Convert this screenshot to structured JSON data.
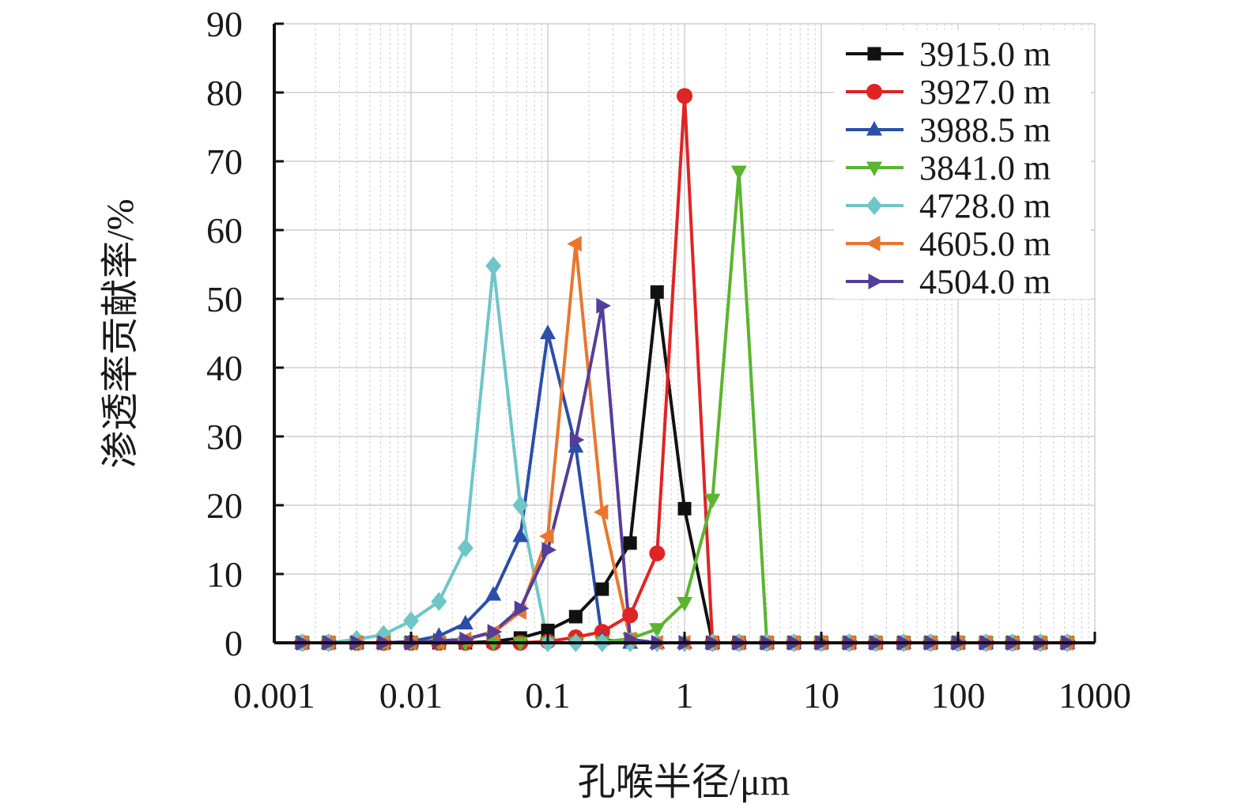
{
  "chart_data": {
    "type": "line",
    "xlabel": "孔喉半径/μm",
    "ylabel": "渗透率贡献率/%",
    "xscale": "log",
    "xlim": [
      0.001,
      1000
    ],
    "ylim": [
      0,
      90
    ],
    "xticks": [
      0.001,
      0.01,
      0.1,
      1,
      10,
      100,
      1000
    ],
    "xtick_labels": [
      "0.001",
      "0.01",
      "0.1",
      "1",
      "10",
      "100",
      "1000"
    ],
    "yticks": [
      0,
      10,
      20,
      30,
      40,
      50,
      60,
      70,
      80,
      90
    ],
    "ytick_labels": [
      "0",
      "10",
      "20",
      "30",
      "40",
      "50",
      "60",
      "70",
      "80",
      "90"
    ],
    "grid": true,
    "legend_position": "top-right",
    "x": [
      0.0016,
      0.0025,
      0.004,
      0.0063,
      0.01,
      0.016,
      0.025,
      0.04,
      0.063,
      0.1,
      0.16,
      0.25,
      0.4,
      0.63,
      1,
      1.6,
      2.5,
      4,
      6.3,
      10,
      16,
      25,
      40,
      63,
      100,
      160,
      250,
      400,
      630
    ],
    "series": [
      {
        "name": "3915.0 m",
        "color": "#111111",
        "marker": "square",
        "values": [
          0,
          0,
          0,
          0,
          0,
          0,
          0,
          0.2,
          0.7,
          1.8,
          3.8,
          7.8,
          14.5,
          51,
          19.5,
          0,
          0,
          0,
          0,
          0,
          0,
          0,
          0,
          0,
          0,
          0,
          0,
          0,
          0
        ]
      },
      {
        "name": "3927.0 m",
        "color": "#e02424",
        "marker": "circle",
        "values": [
          0,
          0,
          0,
          0,
          0,
          0,
          0,
          0,
          0,
          0.2,
          0.8,
          1.6,
          4,
          13,
          79.5,
          0,
          0,
          0,
          0,
          0,
          0,
          0,
          0,
          0,
          0,
          0,
          0,
          0,
          0
        ]
      },
      {
        "name": "3988.5 m",
        "color": "#2b4ea8",
        "marker": "triangle-up",
        "values": [
          0,
          0,
          0,
          0,
          0.2,
          1,
          2.8,
          7,
          15.5,
          45,
          28.5,
          0.5,
          0,
          0,
          0,
          0,
          0,
          0,
          0,
          0,
          0,
          0,
          0,
          0,
          0,
          0,
          0,
          0,
          0
        ]
      },
      {
        "name": "3841.0 m",
        "color": "#5ab52f",
        "marker": "triangle-down",
        "values": [
          0,
          0,
          0,
          0,
          0,
          0,
          0,
          0,
          0,
          0,
          0,
          0.1,
          0.6,
          2,
          5.8,
          20.8,
          68.5,
          0,
          0,
          0,
          0,
          0,
          0,
          0,
          0,
          0,
          0,
          0,
          0
        ]
      },
      {
        "name": "4728.0 m",
        "color": "#6fc6c6",
        "marker": "diamond",
        "values": [
          0,
          0,
          0.5,
          1.2,
          3.2,
          6,
          13.8,
          54.8,
          20,
          0,
          0,
          0,
          0,
          0,
          0,
          0,
          0,
          0,
          0,
          0,
          0,
          0,
          0,
          0,
          0,
          0,
          0,
          0,
          0
        ]
      },
      {
        "name": "4605.0 m",
        "color": "#e8772e",
        "marker": "triangle-left",
        "values": [
          0,
          0,
          0,
          0,
          0,
          0,
          0.5,
          1.5,
          4.5,
          15.5,
          58,
          19,
          0.5,
          0,
          0,
          0,
          0,
          0,
          0,
          0,
          0,
          0,
          0,
          0,
          0,
          0,
          0,
          0,
          0
        ]
      },
      {
        "name": "4504.0 m",
        "color": "#553d9a",
        "marker": "triangle-right",
        "values": [
          0,
          0,
          0,
          0,
          0,
          0.3,
          0.5,
          1.6,
          5,
          13.5,
          29.5,
          49,
          0.5,
          0,
          0,
          0,
          0,
          0,
          0,
          0,
          0,
          0,
          0,
          0,
          0,
          0,
          0,
          0,
          0
        ]
      }
    ]
  }
}
